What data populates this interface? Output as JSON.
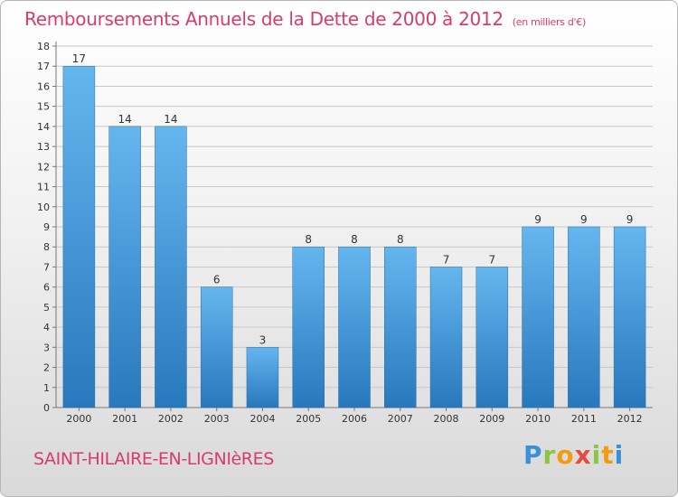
{
  "title": "Remboursements Annuels de la Dette de 2000 à 2012",
  "subtitle": "(en milliers d'€)",
  "town": "SAINT-HILAIRE-EN-LIGNIèRES",
  "brand": {
    "letters": [
      "P",
      "r",
      "o",
      "x",
      "i",
      "t",
      "i"
    ],
    "colors": [
      "#3a8fd8",
      "#8cc63f",
      "#f39c12",
      "#e74c3c",
      "#8cc63f",
      "#f39c12",
      "#3a8fd8"
    ]
  },
  "colors": {
    "bar_top": "#65b6ef",
    "bar_bottom": "#2878bd",
    "title": "#d83c6b",
    "grid": "#c8c8c8"
  },
  "chart_data": {
    "type": "bar",
    "categories": [
      "2000",
      "2001",
      "2002",
      "2003",
      "2004",
      "2005",
      "2006",
      "2007",
      "2008",
      "2009",
      "2010",
      "2011",
      "2012"
    ],
    "values": [
      17,
      14,
      14,
      6,
      3,
      8,
      8,
      8,
      7,
      7,
      9,
      9,
      9
    ],
    "title": "Remboursements Annuels de la Dette de 2000 à 2012",
    "xlabel": "",
    "ylabel": "",
    "ylim": [
      0,
      18
    ],
    "yticks": [
      0,
      1,
      2,
      3,
      4,
      5,
      6,
      7,
      8,
      9,
      10,
      11,
      12,
      13,
      14,
      15,
      16,
      17,
      18
    ],
    "grid": true,
    "data_labels": true
  }
}
